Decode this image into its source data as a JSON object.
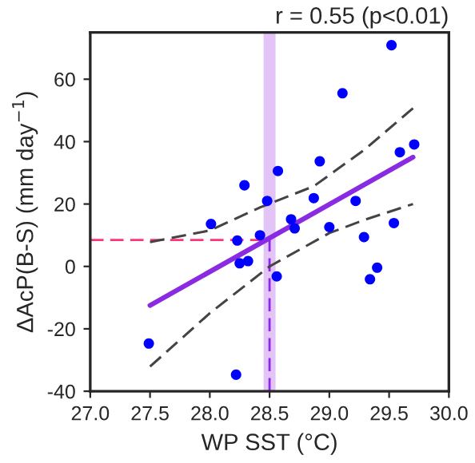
{
  "chart_data": {
    "type": "scatter",
    "title": "r = 0.55 (p<0.01)",
    "xlabel": "WP SST (°C)",
    "ylabel": "ΔAcP(B-S) (mm day$^{−1}$)",
    "xlim": [
      27.0,
      30.0
    ],
    "xticks": [
      {
        "value": 27.0,
        "label": "27.0"
      },
      {
        "value": 27.5,
        "label": "27.5"
      },
      {
        "value": 28.0,
        "label": "28.0"
      },
      {
        "value": 28.5,
        "label": "28.5"
      },
      {
        "value": 29.0,
        "label": "29.0"
      },
      {
        "value": 29.5,
        "label": "29.5"
      },
      {
        "value": 30.0,
        "label": "30.0"
      }
    ],
    "ylim": [
      -40,
      75
    ],
    "yticks": [
      -40,
      -20,
      0,
      20,
      40,
      60
    ],
    "grid": false,
    "legend": false,
    "series": [
      {
        "color": "#0000ff",
        "marker": "circle",
        "x": [
          28.01,
          28.23,
          28.29,
          28.42,
          28.48,
          28.57,
          28.68,
          28.71,
          28.87,
          28.92,
          29.0,
          29.11,
          29.22,
          29.29,
          29.52,
          29.54,
          29.59,
          29.71,
          27.49,
          28.25,
          28.32,
          28.22,
          28.56,
          29.34,
          29.4
        ],
        "values": [
          13.6,
          8.3,
          26,
          10,
          21,
          30.6,
          15.1,
          12.2,
          21.9,
          33.7,
          12.6,
          55.5,
          21,
          9.4,
          70.9,
          13.9,
          36.6,
          39.1,
          -24.7,
          1,
          1.7,
          -34.7,
          -3.2,
          -4.1,
          -0.4
        ]
      },
      {
        "type": "line",
        "color": "#8a2be2",
        "line_style": "solid",
        "x": [
          27.5,
          29.7
        ],
        "values": [
          -12.5,
          35
        ]
      },
      {
        "type": "line",
        "color": "#444444",
        "line_style": "dashed",
        "x": [
          27.5,
          28.0,
          28.42,
          28.87,
          29.3,
          29.7
        ],
        "values": [
          7.8,
          11.5,
          18.9,
          25.7,
          37.6,
          50.7
        ]
      },
      {
        "type": "line",
        "color": "#444444",
        "line_style": "dashed",
        "x": [
          27.5,
          28.0,
          28.5,
          29.0,
          29.3,
          29.7
        ],
        "values": [
          -32.1,
          -15,
          0,
          10.7,
          15,
          20
        ]
      }
    ],
    "ref_lines": [
      {
        "axis": "y",
        "value": 8.5,
        "color": "#ff3377",
        "line_style": "dashed"
      },
      {
        "axis": "x",
        "value": 28.5,
        "color": "#8a2be2",
        "line_style": "dashed"
      }
    ],
    "bands": [
      {
        "axis": "x",
        "from": 28.45,
        "to": 28.55,
        "color": "#e2c4f7"
      }
    ]
  }
}
